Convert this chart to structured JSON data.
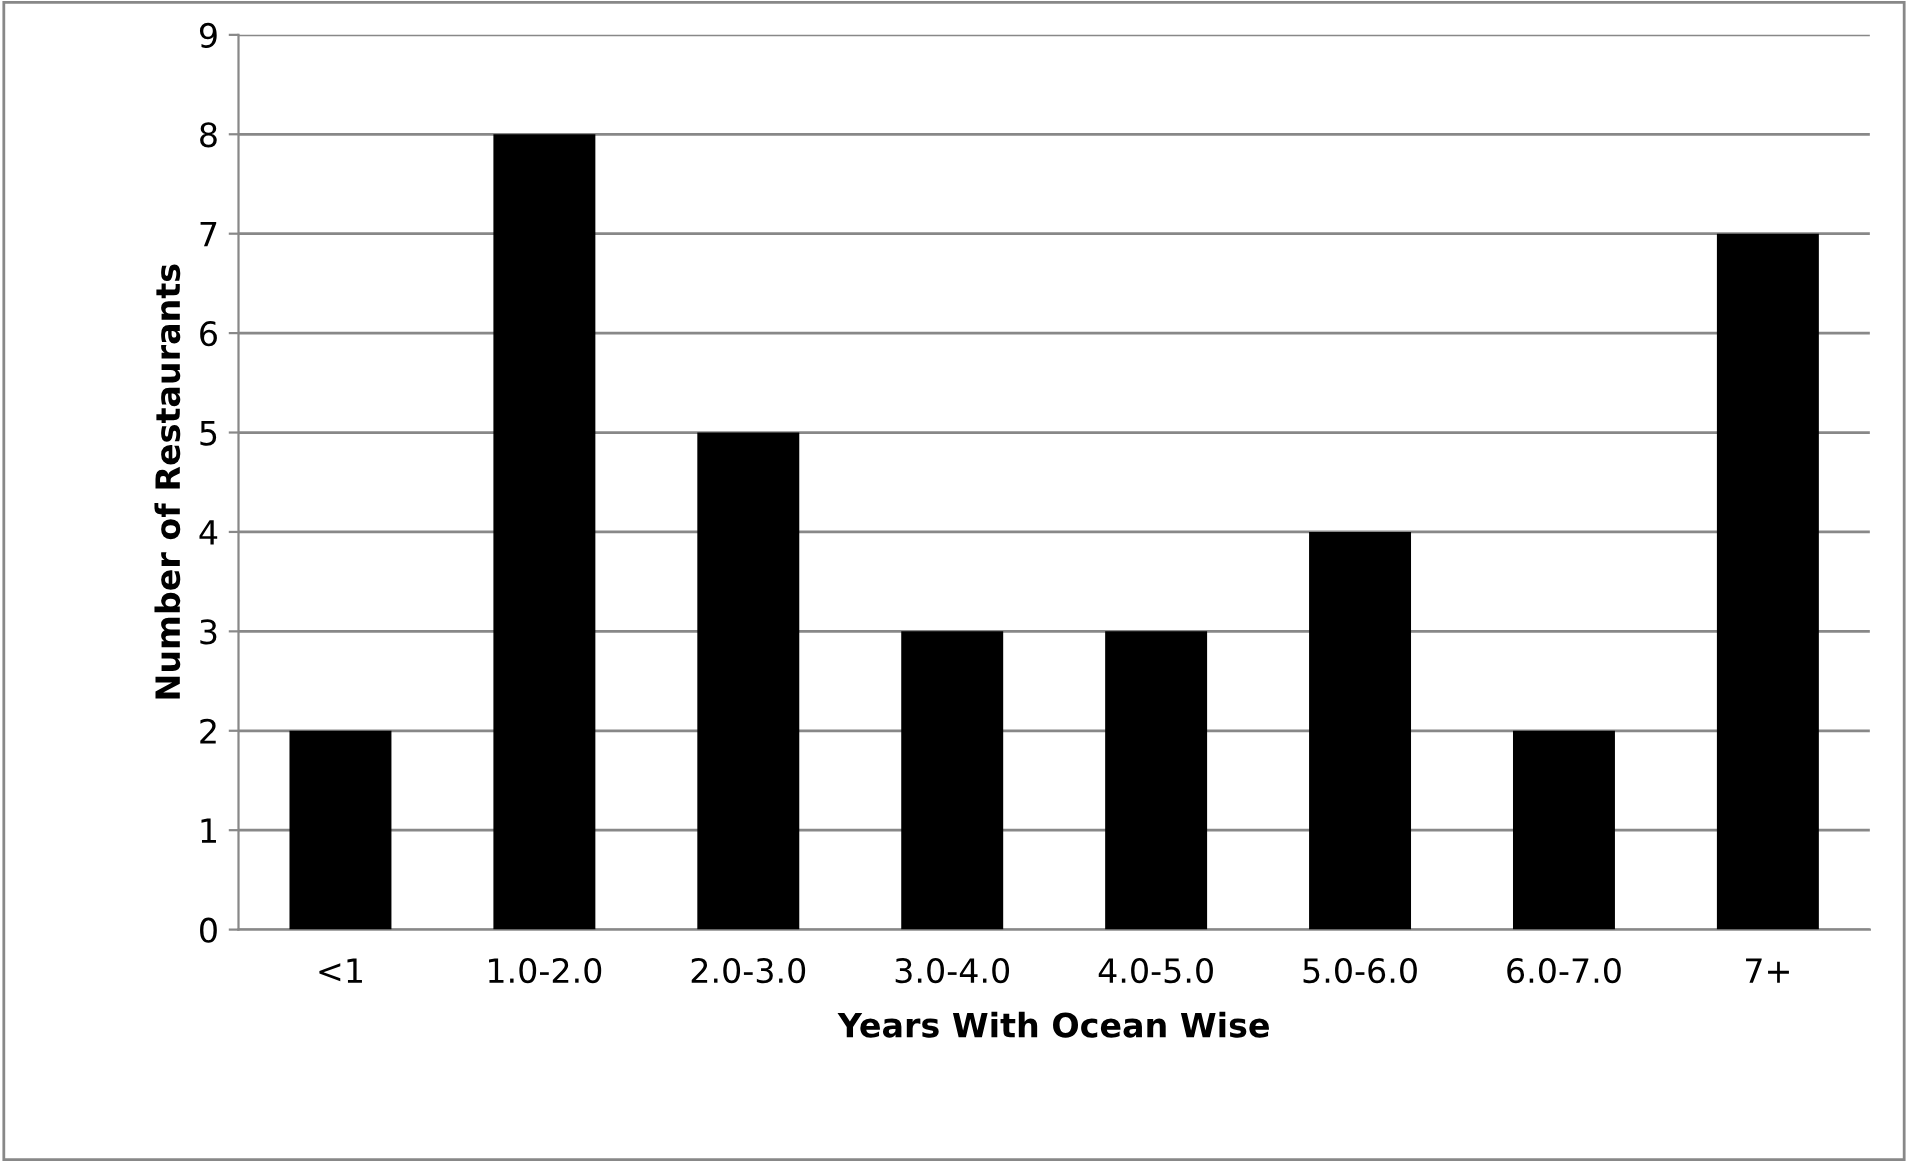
{
  "chart_data": {
    "type": "bar",
    "xlabel": "Years With Ocean Wise",
    "ylabel": "Number of Restaurants",
    "categories": [
      "<1",
      "1.0-2.0",
      "2.0-3.0",
      "3.0-4.0",
      "4.0-5.0",
      "5.0-6.0",
      "6.0-7.0",
      "7+"
    ],
    "values": [
      2,
      8,
      5,
      3,
      3,
      4,
      2,
      7
    ],
    "color": "#000000",
    "ylim": [
      0,
      9
    ],
    "yticks": [
      0,
      1,
      2,
      3,
      4,
      5,
      6,
      7,
      8,
      9
    ],
    "grid": "y",
    "legend": false
  }
}
